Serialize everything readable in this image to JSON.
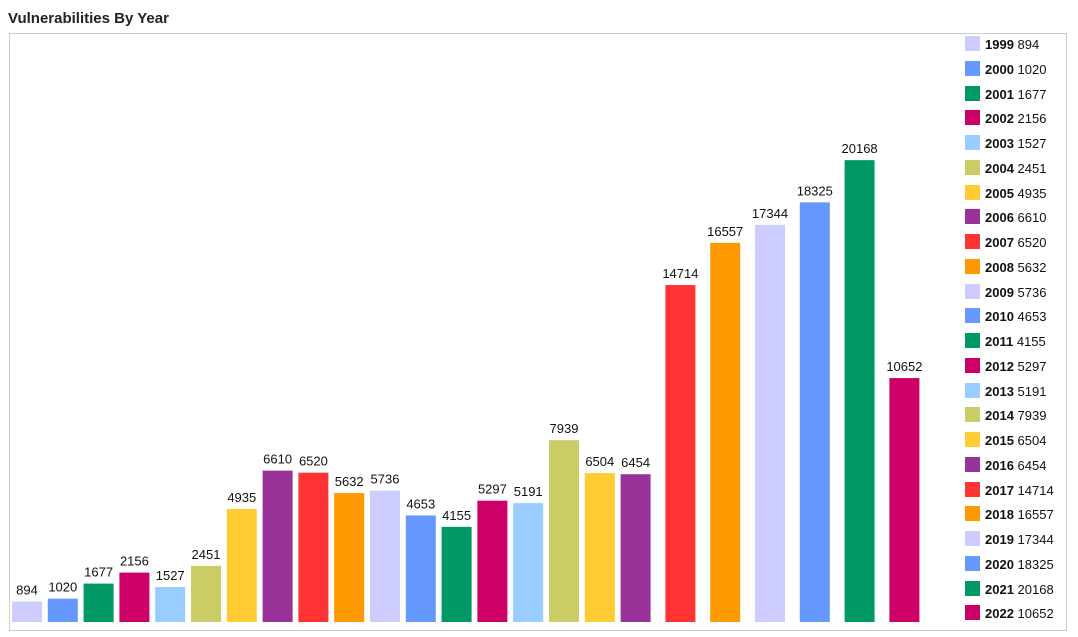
{
  "title": "Vulnerabilities By Year",
  "chart_data": {
    "type": "bar",
    "title": "Vulnerabilities By Year",
    "xlabel": "",
    "ylabel": "",
    "ylim": [
      0,
      22000
    ],
    "grid": false,
    "legend": "right",
    "categories": [
      "1999",
      "2000",
      "2001",
      "2002",
      "2003",
      "2004",
      "2005",
      "2006",
      "2007",
      "2008",
      "2009",
      "2010",
      "2011",
      "2012",
      "2013",
      "2014",
      "2015",
      "2016",
      "2017",
      "2018",
      "2019",
      "2020",
      "2021",
      "2022"
    ],
    "values": [
      894,
      1020,
      1677,
      2156,
      1527,
      2451,
      4935,
      6610,
      6520,
      5632,
      5736,
      4653,
      4155,
      5297,
      5191,
      7939,
      6504,
      6454,
      14714,
      16557,
      17344,
      18325,
      20168,
      10652
    ],
    "colors": [
      "#ccccff",
      "#6699ff",
      "#009966",
      "#cc0066",
      "#99ccff",
      "#cccc66",
      "#ffcc33",
      "#993399",
      "#ff3333",
      "#ff9900",
      "#ccccff",
      "#6699ff",
      "#009966",
      "#cc0066",
      "#99ccff",
      "#cccc66",
      "#ffcc33",
      "#993399",
      "#ff3333",
      "#ff9900",
      "#ccccff",
      "#6699ff",
      "#009966",
      "#cc0066"
    ]
  }
}
